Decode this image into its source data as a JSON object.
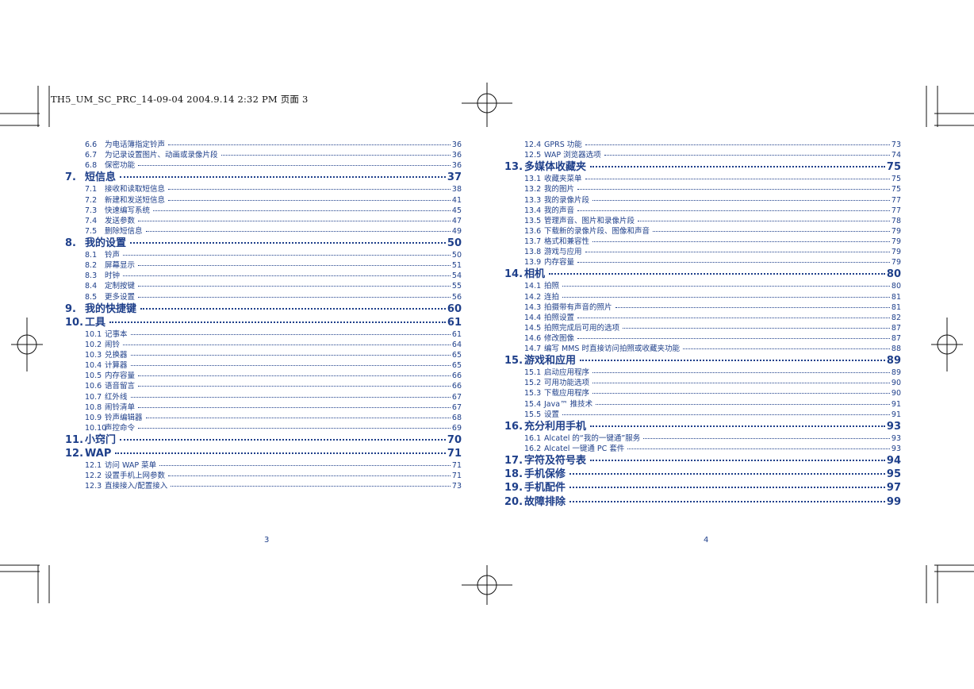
{
  "header_stamp": "TH5_UM_SC_PRC_14-09-04   2004.9.14   2:32 PM  页面 3",
  "left_page": {
    "page_number": "3",
    "entries": [
      {
        "kind": "sub",
        "num": "6.6",
        "title": "为电话簿指定铃声",
        "page": "36"
      },
      {
        "kind": "sub",
        "num": "6.7",
        "title": "为记录设置图片、动画或录像片段",
        "page": "36"
      },
      {
        "kind": "sub",
        "num": "6.8",
        "title": "保密功能",
        "page": "36"
      },
      {
        "kind": "chap",
        "num": "7.",
        "title": "短信息",
        "page": "37"
      },
      {
        "kind": "sub",
        "num": "7.1",
        "title": "接收和读取短信息",
        "page": "38"
      },
      {
        "kind": "sub",
        "num": "7.2",
        "title": "新建和发送短信息",
        "page": "41"
      },
      {
        "kind": "sub",
        "num": "7.3",
        "title": "快速编写系统",
        "page": "45"
      },
      {
        "kind": "sub",
        "num": "7.4",
        "title": "发送参数",
        "page": "47"
      },
      {
        "kind": "sub",
        "num": "7.5",
        "title": "删除短信息",
        "page": "49"
      },
      {
        "kind": "chap",
        "num": "8.",
        "title": "我的设置",
        "page": "50"
      },
      {
        "kind": "sub",
        "num": "8.1",
        "title": "铃声",
        "page": "50"
      },
      {
        "kind": "sub",
        "num": "8.2",
        "title": "屏幕显示",
        "page": "51"
      },
      {
        "kind": "sub",
        "num": "8.3",
        "title": "时钟",
        "page": "54"
      },
      {
        "kind": "sub",
        "num": "8.4",
        "title": "定制按键",
        "page": "55"
      },
      {
        "kind": "sub",
        "num": "8.5",
        "title": "更多设置",
        "page": "56"
      },
      {
        "kind": "chap",
        "num": "9.",
        "title": "我的快捷键",
        "page": "60"
      },
      {
        "kind": "chap",
        "num": "10.",
        "title": "工具",
        "page": "61"
      },
      {
        "kind": "sub",
        "num": "10.1",
        "title": "记事本",
        "page": "61"
      },
      {
        "kind": "sub",
        "num": "10.2",
        "title": "闹铃",
        "page": "64"
      },
      {
        "kind": "sub",
        "num": "10.3",
        "title": "兑换器",
        "page": "65"
      },
      {
        "kind": "sub",
        "num": "10.4",
        "title": "计算器",
        "page": "65"
      },
      {
        "kind": "sub",
        "num": "10.5",
        "title": "内存容量",
        "page": "66"
      },
      {
        "kind": "sub",
        "num": "10.6",
        "title": "语音留言",
        "page": "66"
      },
      {
        "kind": "sub",
        "num": "10.7",
        "title": "红外线",
        "page": "67"
      },
      {
        "kind": "sub",
        "num": "10.8",
        "title": "闹铃清单",
        "page": "67"
      },
      {
        "kind": "sub",
        "num": "10.9",
        "title": "铃声编辑器",
        "page": "68"
      },
      {
        "kind": "sub",
        "num": "10.10",
        "title": "声控命令",
        "page": "69"
      },
      {
        "kind": "chap",
        "num": "11.",
        "title": "小窍门",
        "page": "70"
      },
      {
        "kind": "chap",
        "num": "12.",
        "title": "WAP",
        "page": "71"
      },
      {
        "kind": "sub",
        "num": "12.1",
        "title": "访问 WAP 菜单",
        "page": "71"
      },
      {
        "kind": "sub",
        "num": "12.2",
        "title": "设置手机上网参数",
        "page": "71"
      },
      {
        "kind": "sub",
        "num": "12.3",
        "title": "直接接入/配置接入",
        "page": "73"
      }
    ]
  },
  "right_page": {
    "page_number": "4",
    "entries": [
      {
        "kind": "sub",
        "num": "12.4",
        "title": "GPRS 功能",
        "page": "73"
      },
      {
        "kind": "sub",
        "num": "12.5",
        "title": "WAP 浏览器选项",
        "page": "74"
      },
      {
        "kind": "chap",
        "num": "13.",
        "title": "多媒体收藏夹",
        "page": "75"
      },
      {
        "kind": "sub",
        "num": "13.1",
        "title": "收藏夹菜单",
        "page": "75"
      },
      {
        "kind": "sub",
        "num": "13.2",
        "title": "我的图片",
        "page": "75"
      },
      {
        "kind": "sub",
        "num": "13.3",
        "title": "我的录像片段",
        "page": "77"
      },
      {
        "kind": "sub",
        "num": "13.4",
        "title": "我的声音",
        "page": "77"
      },
      {
        "kind": "sub",
        "num": "13.5",
        "title": "管理声音、图片和录像片段",
        "page": "78"
      },
      {
        "kind": "sub",
        "num": "13.6",
        "title": "下载新的录像片段、图像和声音",
        "page": "79"
      },
      {
        "kind": "sub",
        "num": "13.7",
        "title": "格式和兼容性",
        "page": "79"
      },
      {
        "kind": "sub",
        "num": "13.8",
        "title": "游戏与应用",
        "page": "79"
      },
      {
        "kind": "sub",
        "num": "13.9",
        "title": "内存容量",
        "page": "79"
      },
      {
        "kind": "chap",
        "num": "14.",
        "title": "相机",
        "page": "80"
      },
      {
        "kind": "sub",
        "num": "14.1",
        "title": "拍照",
        "page": "80"
      },
      {
        "kind": "sub",
        "num": "14.2",
        "title": "连拍",
        "page": "81"
      },
      {
        "kind": "sub",
        "num": "14.3",
        "title": "拍摄带有声音的照片",
        "page": "81"
      },
      {
        "kind": "sub",
        "num": "14.4",
        "title": "拍照设置",
        "page": "82"
      },
      {
        "kind": "sub",
        "num": "14.5",
        "title": "拍照完成后可用的选项",
        "page": "87"
      },
      {
        "kind": "sub",
        "num": "14.6",
        "title": "修改图像",
        "page": "87"
      },
      {
        "kind": "sub",
        "num": "14.7",
        "title": "编写 MMS 时直接访问拍照或收藏夹功能",
        "page": "88"
      },
      {
        "kind": "chap",
        "num": "15.",
        "title": "游戏和应用",
        "page": "89"
      },
      {
        "kind": "sub",
        "num": "15.1",
        "title": "启动应用程序",
        "page": "89"
      },
      {
        "kind": "sub",
        "num": "15.2",
        "title": "可用功能选项",
        "page": "90"
      },
      {
        "kind": "sub",
        "num": "15.3",
        "title": "下载应用程序",
        "page": "90"
      },
      {
        "kind": "sub",
        "num": "15.4",
        "title": "Java™ 推技术",
        "page": "91"
      },
      {
        "kind": "sub",
        "num": "15.5",
        "title": "设置",
        "page": "91"
      },
      {
        "kind": "chap",
        "num": "16.",
        "title": "充分利用手机",
        "page": "93"
      },
      {
        "kind": "sub",
        "num": "16.1",
        "title": "Alcatel 的“我的一键通”服务",
        "page": "93"
      },
      {
        "kind": "sub",
        "num": "16.2",
        "title": "Alcatel 一键通 PC 套件",
        "page": "93"
      },
      {
        "kind": "chap",
        "num": "17.",
        "title": "字符及符号表",
        "page": "94"
      },
      {
        "kind": "chap",
        "num": "18.",
        "title": "手机保修",
        "page": "95"
      },
      {
        "kind": "chap",
        "num": "19.",
        "title": "手机配件",
        "page": "97"
      },
      {
        "kind": "chap",
        "num": "20.",
        "title": "故障排除",
        "page": "99"
      }
    ]
  }
}
